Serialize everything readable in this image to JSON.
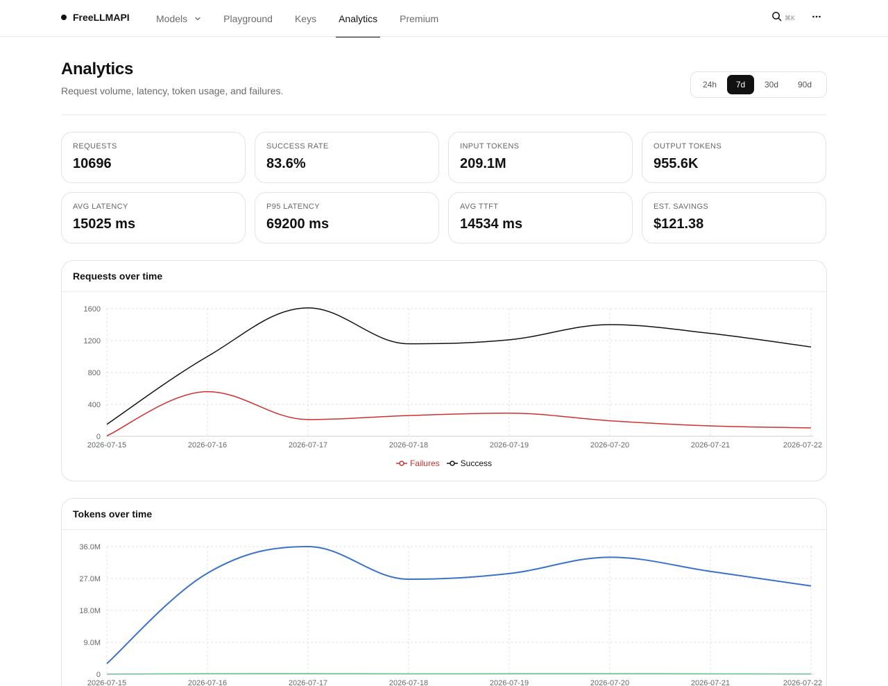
{
  "header": {
    "brand": "FreeLLMAPI",
    "nav": [
      {
        "label": "Models",
        "has_dropdown": true,
        "active": false
      },
      {
        "label": "Playground",
        "active": false
      },
      {
        "label": "Keys",
        "active": false
      },
      {
        "label": "Analytics",
        "active": true
      },
      {
        "label": "Premium",
        "active": false
      }
    ],
    "search_shortcut": "⌘K",
    "icons": {
      "search": "search-icon",
      "more": "more-horizontal-icon",
      "dropdown": "chevron-down-icon"
    }
  },
  "page": {
    "title": "Analytics",
    "subtitle": "Request volume, latency, token usage, and failures.",
    "ranges": [
      "24h",
      "7d",
      "30d",
      "90d"
    ],
    "selected_range": "7d"
  },
  "stats": [
    {
      "label": "REQUESTS",
      "value": "10696"
    },
    {
      "label": "SUCCESS RATE",
      "value": "83.6%"
    },
    {
      "label": "INPUT TOKENS",
      "value": "209.1M"
    },
    {
      "label": "OUTPUT TOKENS",
      "value": "955.6K"
    },
    {
      "label": "AVG LATENCY",
      "value": "15025 ms"
    },
    {
      "label": "P95 LATENCY",
      "value": "69200 ms"
    },
    {
      "label": "AVG TTFT",
      "value": "14534 ms"
    },
    {
      "label": "EST. SAVINGS",
      "value": "$121.38"
    }
  ],
  "cards": {
    "requests_title": "Requests over time",
    "tokens_title": "Tokens over time"
  },
  "colors": {
    "failures": "#d12f2f",
    "success": "#111111",
    "tokens_input": "#3a72c8",
    "tokens_output": "#6cc08b",
    "grid": "#e2e2e2"
  },
  "chart_data": [
    {
      "type": "line",
      "title": "Requests over time",
      "x": [
        "2026-07-15",
        "2026-07-16",
        "2026-07-17",
        "2026-07-18",
        "2026-07-19",
        "2026-07-20",
        "2026-07-21",
        "2026-07-22"
      ],
      "yticks": [
        "0",
        "400",
        "800",
        "1200",
        "1600"
      ],
      "ylim": [
        0,
        1600
      ],
      "grid": true,
      "legend": "bottom-center",
      "series": [
        {
          "name": "Failures",
          "values": [
            5,
            560,
            210,
            260,
            290,
            195,
            130,
            105
          ]
        },
        {
          "name": "Success",
          "values": [
            150,
            1000,
            1610,
            1160,
            1210,
            1400,
            1290,
            1120
          ]
        }
      ]
    },
    {
      "type": "line",
      "title": "Tokens over time",
      "x": [
        "2026-07-15",
        "2026-07-16",
        "2026-07-17",
        "2026-07-18",
        "2026-07-19",
        "2026-07-20",
        "2026-07-21",
        "2026-07-22"
      ],
      "yticks": [
        "0",
        "9.0M",
        "18.0M",
        "27.0M",
        "36.0M"
      ],
      "ylim": [
        0,
        36000000
      ],
      "grid": true,
      "series": [
        {
          "values": [
            3000000,
            28500000,
            36000000,
            26800000,
            28400000,
            33000000,
            29000000,
            24900000
          ]
        },
        {
          "values": [
            20000,
            150000,
            180000,
            130000,
            140000,
            150000,
            110000,
            80000
          ]
        }
      ]
    }
  ]
}
